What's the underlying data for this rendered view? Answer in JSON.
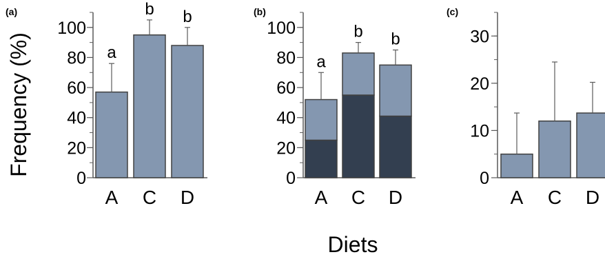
{
  "figure": {
    "ylabel": "Frequency (%)",
    "xlabel": "Diets"
  },
  "colors": {
    "bar_light": "#8497b0",
    "bar_dark": "#333f50",
    "bar_stroke": "#404040",
    "axis": "#595959",
    "error_bar": "#595959"
  },
  "chart_data": [
    {
      "type": "bar",
      "panel": "(a)",
      "categories": [
        "A",
        "C",
        "D"
      ],
      "values": [
        57,
        95,
        88
      ],
      "errors": [
        19,
        10,
        12
      ],
      "letters": [
        "a",
        "b",
        "b"
      ],
      "ylim": [
        0,
        110
      ],
      "yticks": [
        0,
        20,
        40,
        60,
        80,
        100
      ],
      "ytick_labels": [
        "0",
        "20",
        "40",
        "60",
        "80",
        "100"
      ],
      "minor_step": 10,
      "grid": false
    },
    {
      "type": "bar",
      "stacked": true,
      "panel": "(b)",
      "categories": [
        "A",
        "C",
        "D"
      ],
      "series": [
        {
          "values": [
            25,
            55,
            41
          ],
          "color": "#333f50"
        },
        {
          "values": [
            27,
            28,
            34
          ],
          "color": "#8497b0"
        }
      ],
      "totals": [
        52,
        83,
        75
      ],
      "errors": [
        18,
        7,
        10
      ],
      "letters": [
        "a",
        "b",
        "b"
      ],
      "ylim": [
        0,
        110
      ],
      "yticks": [
        0,
        20,
        40,
        60,
        80,
        100
      ],
      "ytick_labels": [
        "0",
        "20",
        "40",
        "60",
        "80",
        "100"
      ],
      "minor_step": 10,
      "grid": false
    },
    {
      "type": "bar",
      "panel": "(c)",
      "categories": [
        "A",
        "C",
        "D"
      ],
      "values": [
        5,
        12,
        13.7
      ],
      "errors": [
        8.7,
        12.5,
        6.5
      ],
      "ylim": [
        0,
        35
      ],
      "yticks": [
        0,
        10,
        20,
        30
      ],
      "ytick_labels": [
        "0",
        "10",
        "20",
        "30"
      ],
      "minor_step": 5,
      "grid": false
    }
  ]
}
